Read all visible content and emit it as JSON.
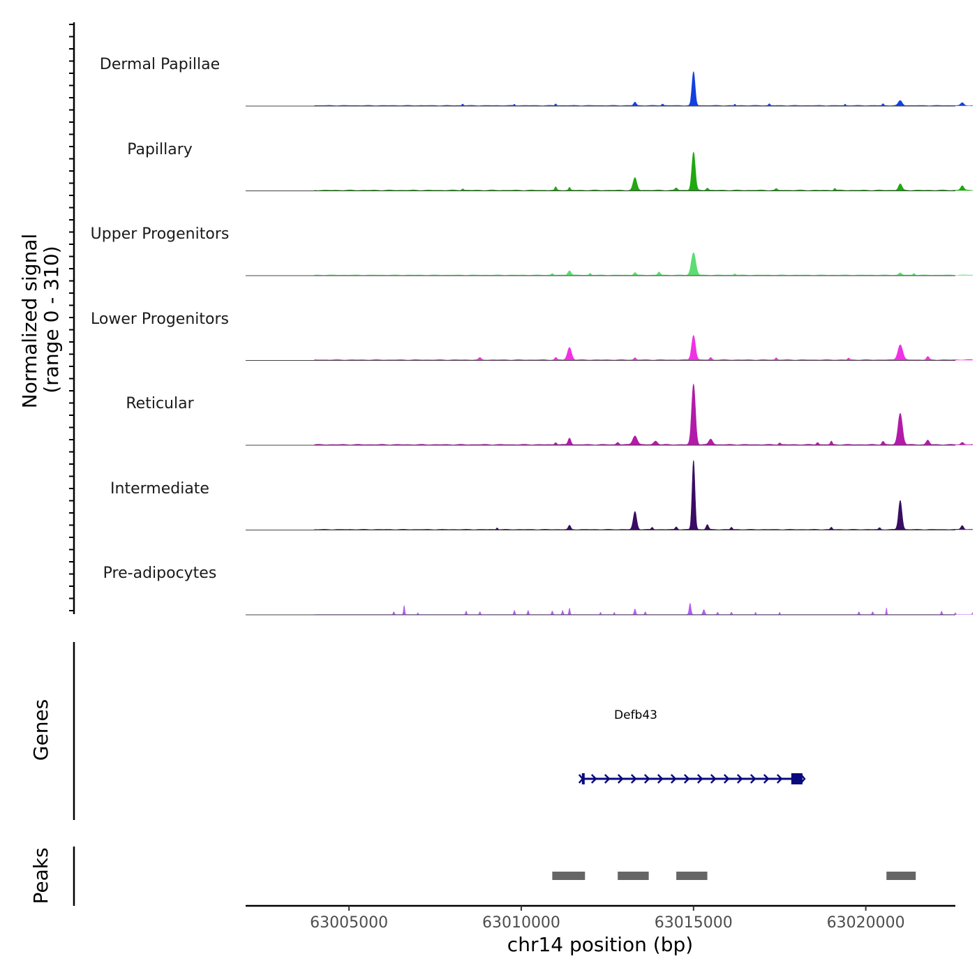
{
  "chart_data": {
    "type": "area",
    "title": "",
    "ylabel_line1": "Normalized signal",
    "ylabel_line2": "(range 0 - 310)",
    "ylim": [
      0,
      310
    ],
    "xlabel": "chr14 position (bp)",
    "xlim": [
      63002000,
      63022600
    ],
    "x_ticks": [
      "63005000",
      "63010000",
      "63015000",
      "63020000"
    ],
    "tracks": [
      {
        "name": "Dermal Papillae",
        "color": "#1240E0",
        "baseline": 2,
        "peaks": [
          {
            "pos": 63015000,
            "h": 150,
            "w": 100
          },
          {
            "pos": 63013300,
            "h": 15,
            "w": 80
          },
          {
            "pos": 63021000,
            "h": 22,
            "w": 120
          },
          {
            "pos": 63022800,
            "h": 12,
            "w": 100
          },
          {
            "pos": 63011000,
            "h": 8,
            "w": 50
          },
          {
            "pos": 63017200,
            "h": 8,
            "w": 50
          },
          {
            "pos": 63008300,
            "h": 7,
            "w": 50
          },
          {
            "pos": 63014100,
            "h": 7,
            "w": 60
          },
          {
            "pos": 63009800,
            "h": 6,
            "w": 40
          },
          {
            "pos": 63019400,
            "h": 6,
            "w": 40
          },
          {
            "pos": 63016200,
            "h": 6,
            "w": 40
          },
          {
            "pos": 63020500,
            "h": 8,
            "w": 50
          }
        ]
      },
      {
        "name": "Papillary",
        "color": "#1FA810",
        "baseline": 3,
        "peaks": [
          {
            "pos": 63015000,
            "h": 170,
            "w": 110
          },
          {
            "pos": 63013300,
            "h": 55,
            "w": 120
          },
          {
            "pos": 63021000,
            "h": 28,
            "w": 110
          },
          {
            "pos": 63022800,
            "h": 20,
            "w": 100
          },
          {
            "pos": 63011400,
            "h": 12,
            "w": 60
          },
          {
            "pos": 63011000,
            "h": 14,
            "w": 60
          },
          {
            "pos": 63015400,
            "h": 10,
            "w": 80
          },
          {
            "pos": 63014500,
            "h": 10,
            "w": 80
          },
          {
            "pos": 63019100,
            "h": 9,
            "w": 60
          },
          {
            "pos": 63008300,
            "h": 7,
            "w": 60
          },
          {
            "pos": 63017400,
            "h": 7,
            "w": 60
          }
        ]
      },
      {
        "name": "Upper Progenitors",
        "color": "#5CDC72",
        "baseline": 2,
        "peaks": [
          {
            "pos": 63015000,
            "h": 100,
            "w": 140
          },
          {
            "pos": 63011400,
            "h": 20,
            "w": 100
          },
          {
            "pos": 63013300,
            "h": 12,
            "w": 80
          },
          {
            "pos": 63014000,
            "h": 14,
            "w": 80
          },
          {
            "pos": 63021000,
            "h": 10,
            "w": 90
          },
          {
            "pos": 63012000,
            "h": 8,
            "w": 60
          },
          {
            "pos": 63010900,
            "h": 7,
            "w": 60
          },
          {
            "pos": 63016200,
            "h": 6,
            "w": 60
          },
          {
            "pos": 63021400,
            "h": 8,
            "w": 60
          }
        ]
      },
      {
        "name": "Lower Progenitors",
        "color": "#F031E4",
        "baseline": 3,
        "peaks": [
          {
            "pos": 63015000,
            "h": 110,
            "w": 120
          },
          {
            "pos": 63021000,
            "h": 68,
            "w": 150
          },
          {
            "pos": 63011400,
            "h": 55,
            "w": 130
          },
          {
            "pos": 63021800,
            "h": 14,
            "w": 80
          },
          {
            "pos": 63008800,
            "h": 9,
            "w": 80
          },
          {
            "pos": 63011000,
            "h": 10,
            "w": 70
          },
          {
            "pos": 63013300,
            "h": 9,
            "w": 70
          },
          {
            "pos": 63017400,
            "h": 9,
            "w": 60
          },
          {
            "pos": 63019500,
            "h": 8,
            "w": 60
          },
          {
            "pos": 63015500,
            "h": 10,
            "w": 70
          }
        ]
      },
      {
        "name": "Reticular",
        "color": "#B21AAA",
        "baseline": 3,
        "peaks": [
          {
            "pos": 63015000,
            "h": 270,
            "w": 120
          },
          {
            "pos": 63021000,
            "h": 140,
            "w": 140
          },
          {
            "pos": 63013300,
            "h": 40,
            "w": 140
          },
          {
            "pos": 63011400,
            "h": 30,
            "w": 90
          },
          {
            "pos": 63021800,
            "h": 20,
            "w": 100
          },
          {
            "pos": 63013900,
            "h": 16,
            "w": 120
          },
          {
            "pos": 63015500,
            "h": 25,
            "w": 120
          },
          {
            "pos": 63022800,
            "h": 10,
            "w": 90
          },
          {
            "pos": 63012800,
            "h": 10,
            "w": 80
          },
          {
            "pos": 63011000,
            "h": 10,
            "w": 70
          },
          {
            "pos": 63017500,
            "h": 8,
            "w": 70
          },
          {
            "pos": 63018600,
            "h": 10,
            "w": 70
          },
          {
            "pos": 63019000,
            "h": 15,
            "w": 60
          },
          {
            "pos": 63020500,
            "h": 15,
            "w": 80
          }
        ]
      },
      {
        "name": "Intermediate",
        "color": "#3A0C62",
        "baseline": 2,
        "peaks": [
          {
            "pos": 63015000,
            "h": 310,
            "w": 90
          },
          {
            "pos": 63021000,
            "h": 130,
            "w": 110
          },
          {
            "pos": 63013300,
            "h": 80,
            "w": 110
          },
          {
            "pos": 63015400,
            "h": 22,
            "w": 80
          },
          {
            "pos": 63011400,
            "h": 18,
            "w": 80
          },
          {
            "pos": 63022800,
            "h": 18,
            "w": 90
          },
          {
            "pos": 63014500,
            "h": 12,
            "w": 70
          },
          {
            "pos": 63016100,
            "h": 10,
            "w": 60
          },
          {
            "pos": 63019000,
            "h": 10,
            "w": 60
          },
          {
            "pos": 63009300,
            "h": 8,
            "w": 50
          },
          {
            "pos": 63013800,
            "h": 10,
            "w": 60
          },
          {
            "pos": 63020400,
            "h": 8,
            "w": 60
          }
        ]
      },
      {
        "name": "Pre-adipocytes",
        "color": "#B35BF2",
        "baseline": 0,
        "peaks": [
          {
            "pos": 63006600,
            "h": 40,
            "w": 40
          },
          {
            "pos": 63006300,
            "h": 12,
            "w": 40
          },
          {
            "pos": 63014900,
            "h": 50,
            "w": 60
          },
          {
            "pos": 63011400,
            "h": 28,
            "w": 40
          },
          {
            "pos": 63013300,
            "h": 25,
            "w": 50
          },
          {
            "pos": 63020600,
            "h": 30,
            "w": 30
          },
          {
            "pos": 63008400,
            "h": 15,
            "w": 40
          },
          {
            "pos": 63008800,
            "h": 12,
            "w": 40
          },
          {
            "pos": 63009800,
            "h": 18,
            "w": 40
          },
          {
            "pos": 63010200,
            "h": 18,
            "w": 40
          },
          {
            "pos": 63010900,
            "h": 16,
            "w": 40
          },
          {
            "pos": 63011200,
            "h": 18,
            "w": 40
          },
          {
            "pos": 63012300,
            "h": 10,
            "w": 30
          },
          {
            "pos": 63012700,
            "h": 10,
            "w": 30
          },
          {
            "pos": 63013600,
            "h": 12,
            "w": 40
          },
          {
            "pos": 63015300,
            "h": 22,
            "w": 60
          },
          {
            "pos": 63015700,
            "h": 10,
            "w": 40
          },
          {
            "pos": 63016100,
            "h": 10,
            "w": 40
          },
          {
            "pos": 63016800,
            "h": 10,
            "w": 30
          },
          {
            "pos": 63017500,
            "h": 10,
            "w": 30
          },
          {
            "pos": 63019800,
            "h": 12,
            "w": 40
          },
          {
            "pos": 63020200,
            "h": 12,
            "w": 40
          },
          {
            "pos": 63022200,
            "h": 15,
            "w": 40
          },
          {
            "pos": 63022600,
            "h": 8,
            "w": 30
          },
          {
            "pos": 63023100,
            "h": 8,
            "w": 30
          },
          {
            "pos": 63007000,
            "h": 8,
            "w": 30
          }
        ]
      }
    ],
    "genes_label": "Genes",
    "gene": {
      "name": "Defb43",
      "start": 63011800,
      "end": 63018000,
      "strand": "+",
      "color": "#0A0A7E"
    },
    "peaks_label": "Peaks",
    "peak_regions": [
      {
        "start": 63010900,
        "end": 63011850
      },
      {
        "start": 63012800,
        "end": 63013700
      },
      {
        "start": 63014500,
        "end": 63015400
      },
      {
        "start": 63020600,
        "end": 63021450
      }
    ],
    "peak_color": "#666666"
  }
}
